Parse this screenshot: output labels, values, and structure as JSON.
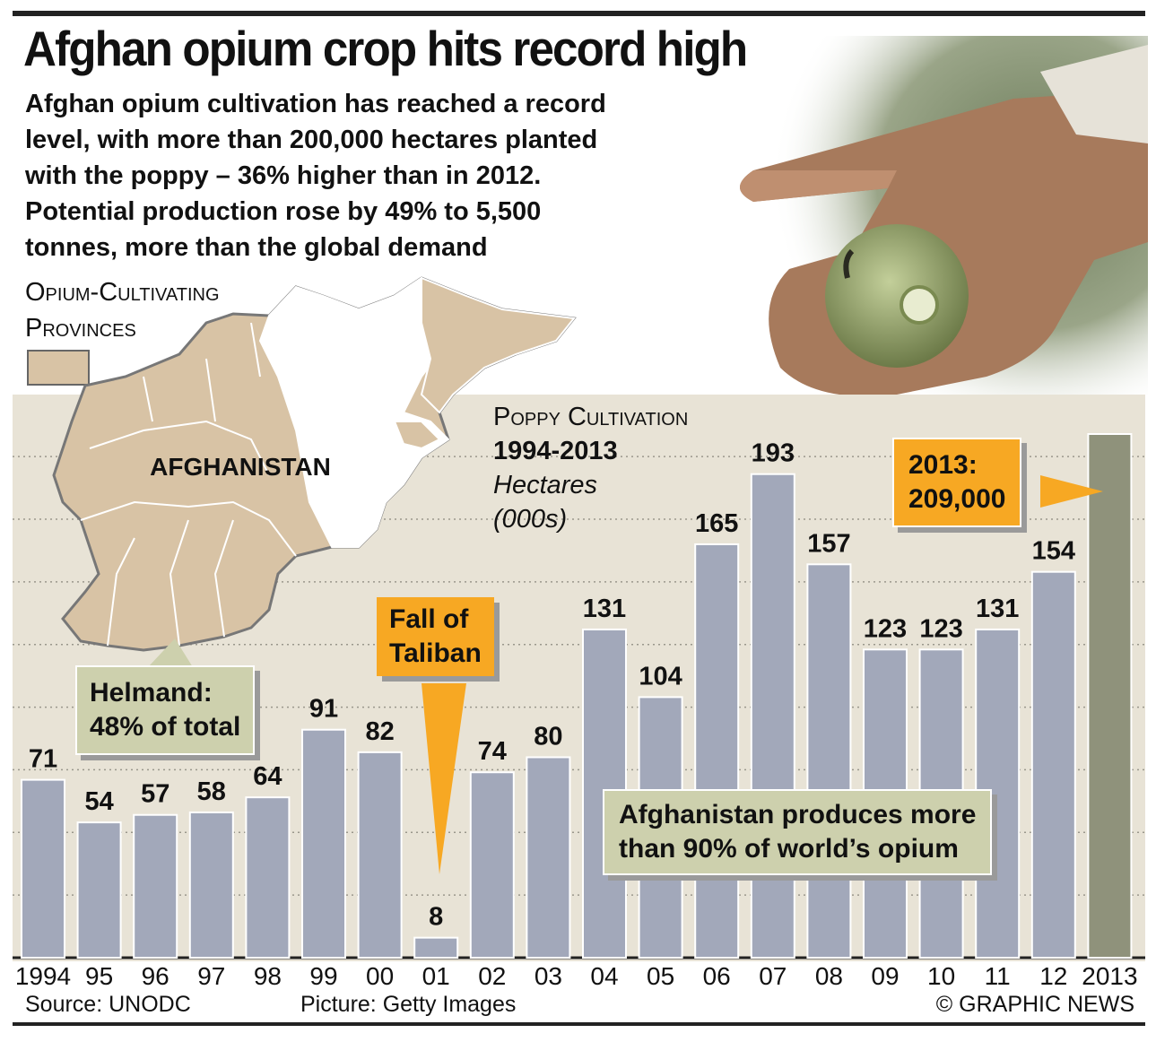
{
  "header": {
    "title": "Afghan opium crop hits record high",
    "intro_lines": [
      "Afghan opium cultivation has reached a record",
      "level, with more than 200,000 hectares planted",
      "with the poppy – 36% higher than in 2012.",
      "Potential production rose by 49% to 5,500",
      "tonnes, more than the global demand"
    ]
  },
  "map": {
    "title_line1": "Opium-Cultivating",
    "title_line2": "Provinces",
    "country_label": "AFGHANISTAN",
    "cultivating_color": "#d8c3a5",
    "other_color": "#ffffff"
  },
  "chart_head": {
    "line1": "Poppy Cultivation",
    "line2": "1994-2013",
    "line3": "Hectares",
    "line4": "(000s)"
  },
  "callouts": {
    "helmand_line1": "Helmand:",
    "helmand_line2": "48% of total",
    "taliban_line1": "Fall of",
    "taliban_line2": "Taliban",
    "record_line1": "2013:",
    "record_line2": "209,000",
    "world_line1": "Afghanistan produces more",
    "world_line2": "than 90% of world’s opium"
  },
  "chart_data": {
    "type": "bar",
    "categories": [
      "1994",
      "95",
      "96",
      "97",
      "98",
      "99",
      "00",
      "01",
      "02",
      "03",
      "04",
      "05",
      "06",
      "07",
      "08",
      "09",
      "10",
      "11",
      "12",
      "2013"
    ],
    "values": [
      71,
      54,
      57,
      58,
      64,
      91,
      82,
      8,
      74,
      80,
      131,
      104,
      165,
      193,
      157,
      123,
      123,
      131,
      154,
      209
    ],
    "value_labels": [
      "71",
      "54",
      "57",
      "58",
      "64",
      "91",
      "82",
      "8",
      "74",
      "80",
      "131",
      "104",
      "165",
      "193",
      "157",
      "123",
      "123",
      "131",
      "154",
      ""
    ],
    "ylim": [
      0,
      220
    ],
    "grid": true,
    "colors": {
      "bar": "#a2a8ba",
      "highlight_bar": "#8f927b",
      "background": "#e8e3d6",
      "callout_orange": "#f7a823",
      "callout_olive": "#cdd0ad"
    }
  },
  "footer": {
    "source": "Source: UNODC",
    "picture": "Picture: Getty Images",
    "credit": "© GRAPHIC NEWS"
  }
}
